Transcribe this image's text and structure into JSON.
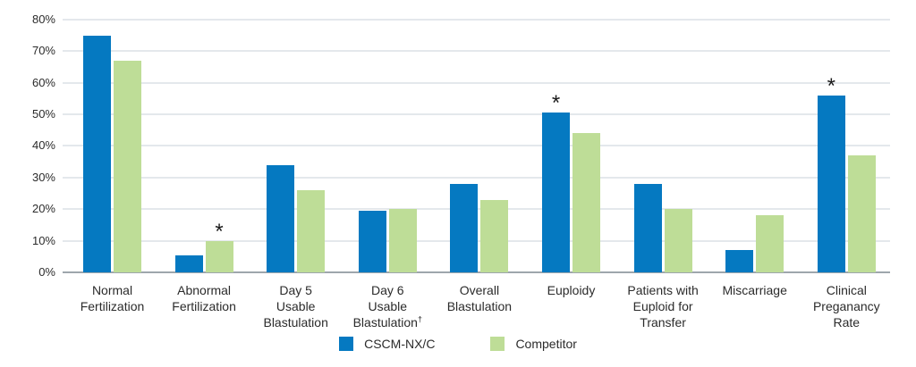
{
  "chart_data": {
    "type": "bar",
    "categories": [
      "Normal Fertilization",
      "Abnormal Fertilization",
      "Day 5 Usable Blastulation",
      "Day 6 Usable Blastulation†",
      "Overall Blastulation",
      "Euploidy",
      "Patients with Euploid for Transfer",
      "Miscarriage",
      "Clinical Preganancy Rate"
    ],
    "category_label_lines": [
      [
        "Normal",
        "Fertilization"
      ],
      [
        "Abnormal",
        "Fertilization"
      ],
      [
        "Day 5",
        "Usable",
        "Blastulation"
      ],
      [
        "Day 6",
        "Usable",
        "Blastulation†"
      ],
      [
        "Overall",
        "Blastulation"
      ],
      [
        "Euploidy"
      ],
      [
        "Patients with",
        "Euploid for",
        "Transfer"
      ],
      [
        "Miscarriage"
      ],
      [
        "Clinical",
        "Preganancy",
        "Rate"
      ]
    ],
    "series": [
      {
        "name": "CSCM-NX/C",
        "color": "#0579c1",
        "values": [
          75,
          5.5,
          34,
          19.5,
          28,
          50.5,
          28,
          7,
          56
        ]
      },
      {
        "name": "Competitor",
        "color": "#bedd97",
        "values": [
          67,
          10,
          26,
          20,
          23,
          44,
          20,
          18,
          37
        ]
      }
    ],
    "annotations": [
      {
        "symbol": "*",
        "category_index": 1,
        "series_index": 1
      },
      {
        "symbol": "*",
        "category_index": 5,
        "series_index": 0
      },
      {
        "symbol": "*",
        "category_index": 8,
        "series_index": 0
      }
    ],
    "y_axis": {
      "ticks": [
        "80%",
        "70%",
        "60%",
        "50%",
        "40%",
        "30%",
        "20%",
        "10%",
        "0%"
      ],
      "tick_values": [
        80,
        70,
        60,
        50,
        40,
        30,
        20,
        10,
        0
      ],
      "ylim": [
        0,
        80
      ],
      "grid": true
    },
    "legend": {
      "position": "bottom",
      "items": [
        "CSCM-NX/C",
        "Competitor"
      ]
    },
    "colors": {
      "grid_line": "#e4e8ec",
      "axis_line": "#9ea6ac",
      "text": "#2b2b2b",
      "annotation": "#1a1a1a",
      "background": "#ffffff"
    }
  }
}
